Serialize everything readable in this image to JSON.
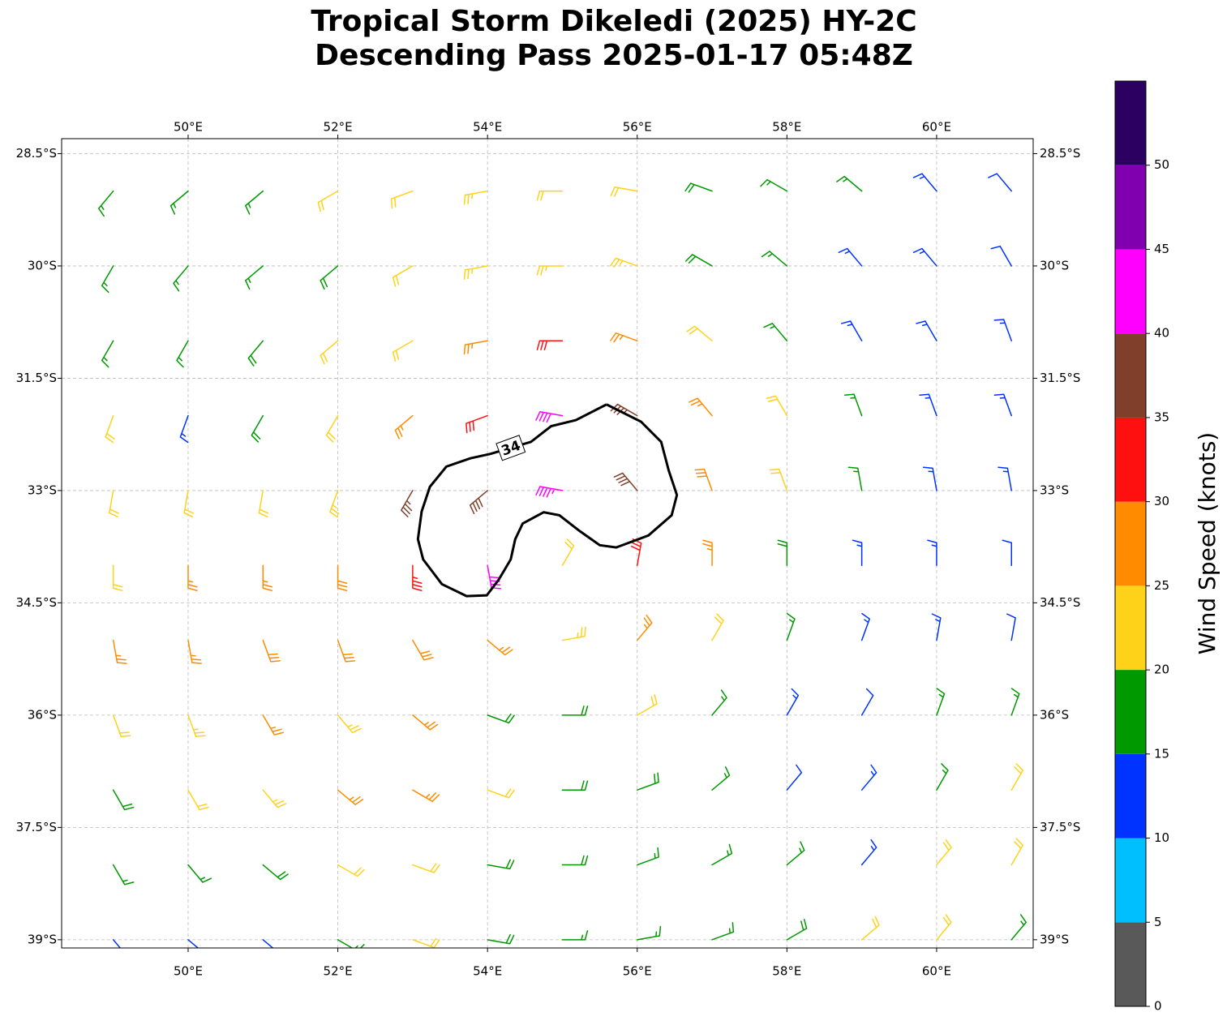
{
  "chart_data": {
    "type": "wind-barbs",
    "title": [
      "Tropical Storm Dikeledi (2025) HY-2C",
      "Descending Pass 2025-01-17 05:48Z"
    ],
    "xlim": [
      48.31,
      61.29
    ],
    "ylim": [
      -39.11,
      -28.3
    ],
    "xticks": [
      {
        "value": 50,
        "label": "50°E"
      },
      {
        "value": 52,
        "label": "52°E"
      },
      {
        "value": 54,
        "label": "54°E"
      },
      {
        "value": 56,
        "label": "56°E"
      },
      {
        "value": 58,
        "label": "58°E"
      },
      {
        "value": 60,
        "label": "60°E"
      }
    ],
    "yticks": [
      {
        "value": -28.5,
        "label": "28.5°S"
      },
      {
        "value": -30,
        "label": "30°S"
      },
      {
        "value": -31.5,
        "label": "31.5°S"
      },
      {
        "value": -33,
        "label": "33°S"
      },
      {
        "value": -34.5,
        "label": "34.5°S"
      },
      {
        "value": -36,
        "label": "36°S"
      },
      {
        "value": -37.5,
        "label": "37.5°S"
      },
      {
        "value": -39,
        "label": "39°S"
      }
    ],
    "grid": true,
    "lons": [
      49,
      50,
      51,
      52,
      53,
      54,
      55,
      56,
      57,
      58,
      59,
      60,
      61
    ],
    "lats": [
      -29,
      -30,
      -31,
      -32,
      -33,
      -34,
      -35,
      -36,
      -37,
      -38,
      -39
    ],
    "speed": [
      [
        17,
        17,
        17,
        22,
        22,
        23,
        22,
        22,
        18,
        17,
        16,
        13,
        12
      ],
      [
        17,
        17,
        17,
        18,
        21,
        23,
        23,
        24,
        19,
        16,
        14,
        13,
        12
      ],
      [
        17,
        16,
        18,
        21,
        22,
        26,
        31,
        27,
        22,
        17,
        14,
        13,
        13
      ],
      [
        21,
        14,
        18,
        22,
        26,
        32,
        42,
        37,
        27,
        21,
        16,
        13,
        13
      ],
      [
        21,
        21,
        22,
        24,
        36,
        38,
        43,
        38,
        28,
        22,
        16,
        14,
        13
      ],
      [
        22,
        26,
        27,
        28,
        33,
        42,
        22,
        32,
        27,
        19,
        14,
        13,
        12
      ],
      [
        26,
        27,
        28,
        28,
        29,
        27,
        24,
        27,
        22,
        17,
        13,
        13,
        12
      ],
      [
        22,
        24,
        27,
        24,
        26,
        19,
        18,
        21,
        17,
        13,
        12,
        16,
        17
      ],
      [
        18,
        21,
        23,
        26,
        26,
        22,
        19,
        18,
        16,
        12,
        13,
        17,
        21
      ],
      [
        17,
        17,
        18,
        22,
        22,
        19,
        18,
        17,
        16,
        17,
        13,
        21,
        22
      ],
      [
        13,
        13,
        12,
        17,
        21,
        18,
        17,
        17,
        16,
        18,
        21,
        21,
        17
      ]
    ],
    "direction": [
      [
        220,
        230,
        230,
        240,
        250,
        260,
        270,
        280,
        290,
        300,
        310,
        320,
        320
      ],
      [
        210,
        220,
        230,
        230,
        240,
        260,
        270,
        290,
        300,
        310,
        320,
        320,
        330
      ],
      [
        210,
        210,
        220,
        230,
        240,
        260,
        270,
        290,
        310,
        320,
        330,
        330,
        340
      ],
      [
        200,
        200,
        210,
        210,
        230,
        250,
        280,
        300,
        320,
        330,
        340,
        340,
        340
      ],
      [
        190,
        190,
        190,
        200,
        210,
        230,
        280,
        320,
        340,
        340,
        350,
        350,
        350
      ],
      [
        180,
        180,
        180,
        180,
        180,
        170,
        30,
        10,
        0,
        0,
        0,
        0,
        0
      ],
      [
        170,
        170,
        160,
        160,
        150,
        130,
        80,
        40,
        30,
        20,
        20,
        10,
        10
      ],
      [
        160,
        160,
        150,
        140,
        130,
        110,
        90,
        60,
        40,
        30,
        30,
        20,
        20
      ],
      [
        150,
        150,
        140,
        130,
        120,
        110,
        90,
        70,
        50,
        40,
        40,
        30,
        30
      ],
      [
        150,
        140,
        130,
        120,
        110,
        100,
        90,
        70,
        60,
        50,
        40,
        40,
        30
      ],
      [
        140,
        130,
        130,
        120,
        110,
        100,
        90,
        80,
        70,
        60,
        50,
        40,
        40
      ]
    ],
    "contour": {
      "level": 34,
      "lon": [
        55.59,
        56.05,
        56.32,
        56.42,
        56.53,
        56.46,
        56.15,
        55.72,
        55.5,
        55.23,
        54.96,
        54.75,
        54.47,
        54.37,
        54.31,
        54.15,
        53.99,
        53.72,
        53.39,
        53.14,
        53.07,
        53.12,
        53.23,
        53.45,
        53.77,
        54.04,
        54.58,
        54.85,
        55.18,
        55.59
      ],
      "lat": [
        -31.85,
        -32.08,
        -32.35,
        -32.73,
        -33.06,
        -33.33,
        -33.6,
        -33.76,
        -33.73,
        -33.54,
        -33.33,
        -33.29,
        -33.44,
        -33.65,
        -33.92,
        -34.19,
        -34.4,
        -34.41,
        -34.25,
        -33.92,
        -33.65,
        -33.28,
        -32.95,
        -32.68,
        -32.57,
        -32.51,
        -32.35,
        -32.14,
        -32.06,
        -31.85
      ]
    },
    "colorbar": {
      "label": "Wind Speed (knots)",
      "lim": [
        0,
        55
      ],
      "ticks": [
        0,
        5,
        10,
        15,
        20,
        25,
        30,
        35,
        40,
        45,
        50
      ],
      "colors": [
        "#595959",
        "#00bfff",
        "#0033ff",
        "#009900",
        "#ffd21a",
        "#ff8c00",
        "#ff1010",
        "#7f3f2a",
        "#ff00ff",
        "#8000b0",
        "#2b0060"
      ]
    }
  }
}
